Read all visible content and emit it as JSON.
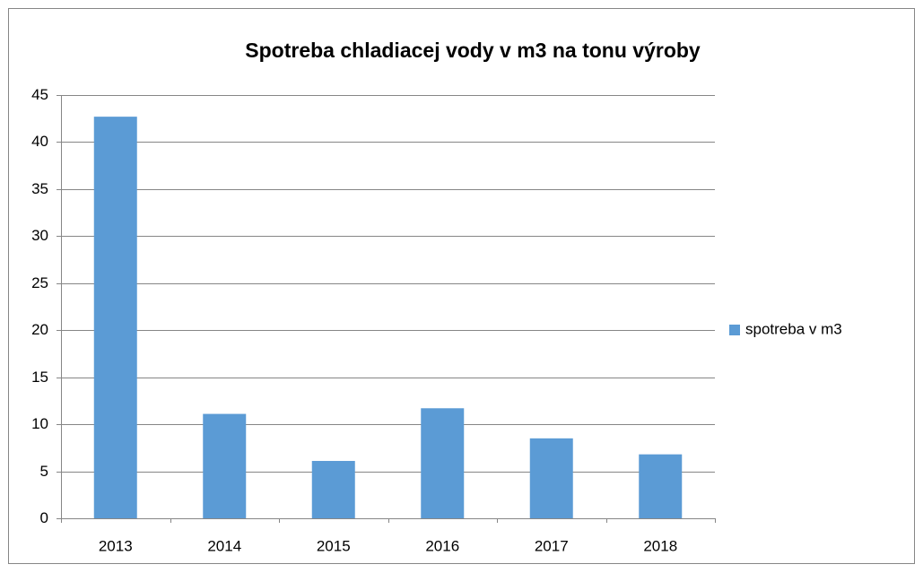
{
  "chart_data": {
    "type": "bar",
    "title": "Spotreba chladiacej vody v m3 na tonu výroby",
    "categories": [
      "2013",
      "2014",
      "2015",
      "2016",
      "2017",
      "2018"
    ],
    "series": [
      {
        "name": "spotreba v m3",
        "color": "#5b9bd5",
        "values": [
          42.7,
          11.1,
          6.1,
          11.7,
          8.5,
          6.8
        ]
      }
    ],
    "ylim": [
      0,
      45
    ],
    "yticks": [
      0,
      5,
      10,
      15,
      20,
      25,
      30,
      35,
      40,
      45
    ],
    "grid": true,
    "legend": "right"
  }
}
